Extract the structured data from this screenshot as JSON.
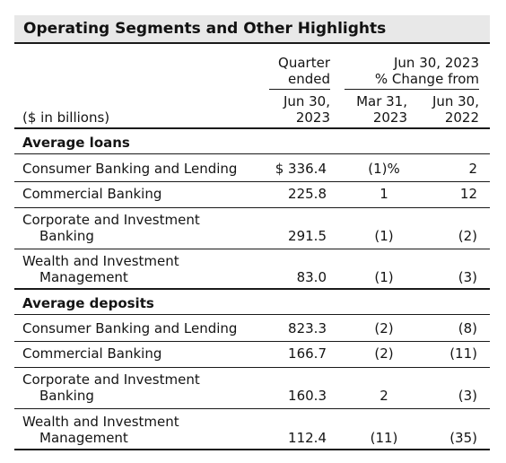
{
  "title": "Operating Segments and Other Highlights",
  "header": {
    "units": "($ in billions)",
    "quarter_ended_line1": "Quarter",
    "quarter_ended_line2": "ended",
    "change_line1": "Jun 30, 2023",
    "change_line2": "% Change from",
    "col1_line1": "Jun 30,",
    "col1_line2": "2023",
    "col2_line1": "Mar 31,",
    "col2_line2": "2023",
    "col3_line1": "Jun 30,",
    "col3_line2": "2022"
  },
  "sections": [
    {
      "heading": "Average loans",
      "rows": [
        {
          "label1": "Consumer Banking and Lending",
          "label2": "",
          "value": "$ 336.4",
          "vs_prior_quarter": "(1)%",
          "vs_prior_year": "2"
        },
        {
          "label1": "Commercial Banking",
          "label2": "",
          "value": "225.8",
          "vs_prior_quarter": "1",
          "vs_prior_year": "12"
        },
        {
          "label1": "Corporate and Investment",
          "label2": "Banking",
          "value": "291.5",
          "vs_prior_quarter": "(1)",
          "vs_prior_year": "(2)"
        },
        {
          "label1": "Wealth and Investment",
          "label2": "Management",
          "value": "83.0",
          "vs_prior_quarter": "(1)",
          "vs_prior_year": "(3)"
        }
      ]
    },
    {
      "heading": "Average deposits",
      "rows": [
        {
          "label1": "Consumer Banking and Lending",
          "label2": "",
          "value": "823.3",
          "vs_prior_quarter": "(2)",
          "vs_prior_year": "(8)"
        },
        {
          "label1": "Commercial Banking",
          "label2": "",
          "value": "166.7",
          "vs_prior_quarter": "(2)",
          "vs_prior_year": "(11)"
        },
        {
          "label1": "Corporate and Investment",
          "label2": "Banking",
          "value": "160.3",
          "vs_prior_quarter": "2",
          "vs_prior_year": "(3)"
        },
        {
          "label1": "Wealth and Investment",
          "label2": "Management",
          "value": "112.4",
          "vs_prior_quarter": "(11)",
          "vs_prior_year": "(35)"
        }
      ]
    }
  ]
}
